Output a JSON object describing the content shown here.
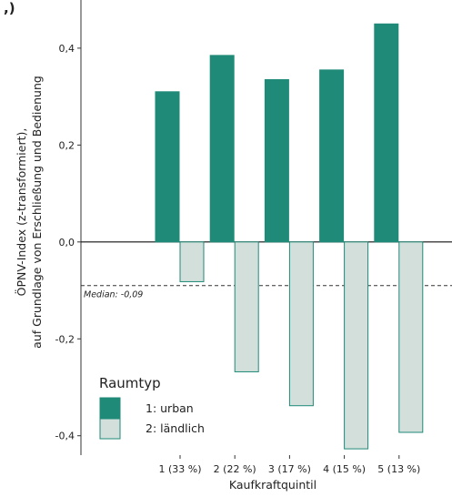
{
  "chart_data": {
    "type": "bar",
    "top_left_mark": ",)",
    "categories": [
      "1 (33 %)",
      "2 (22 %)",
      "3 (17 %)",
      "4 (15 %)",
      "5 (13 %)"
    ],
    "series": [
      {
        "name": "1: urban",
        "values": [
          0.31,
          0.385,
          0.335,
          0.355,
          0.45
        ],
        "color": "#1f8a78",
        "edge": "#1f8a78"
      },
      {
        "name": "2: ländlich",
        "values": [
          -0.082,
          -0.268,
          -0.338,
          -0.427,
          -0.393
        ],
        "color": "#d3dfdb",
        "edge": "#1f8a78"
      }
    ],
    "xlabel": "Kaufkraftquintil",
    "ylabel_line1": "ÖPNV-Index (z-transformiert),",
    "ylabel_line2": "auf Grundlage von Erschließung und Bedienung",
    "ylim": [
      -0.44,
      0.49
    ],
    "yticks": [
      -0.4,
      -0.2,
      0.0,
      0.2,
      0.4
    ],
    "ytick_labels": [
      "-0,4",
      "-0,2",
      "0,0",
      "0,2",
      "0,4"
    ],
    "zero_line": 0,
    "median": {
      "value": -0.09,
      "label": "Median: -0,09"
    },
    "legend": {
      "title": "Raumtyp",
      "placement": "bottom-left"
    },
    "grid": false
  }
}
